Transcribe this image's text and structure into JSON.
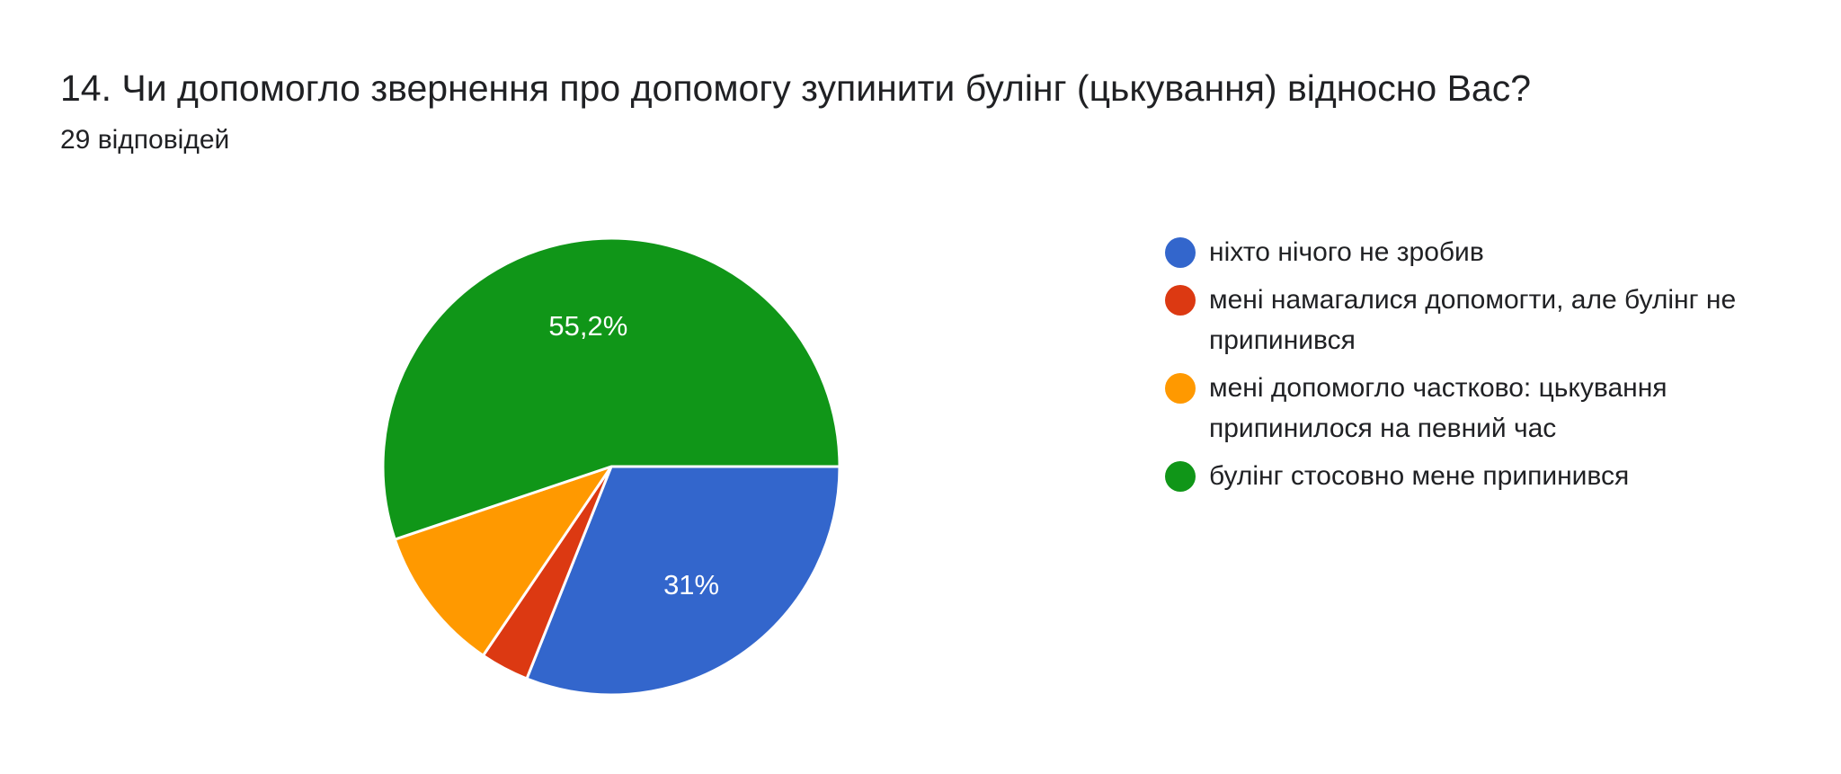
{
  "header": {
    "title": "14. Чи допомогло звернення про допомогу зупинити булінг (цькування) відносно Вас?",
    "responses": "29 відповідей"
  },
  "chart_data": {
    "type": "pie",
    "total_responses": 29,
    "legend_position": "right",
    "slices": [
      {
        "label": "ніхто нічого не зробив",
        "count": 9,
        "percent": 31.0,
        "display_label": "31%",
        "color": "#3366cc"
      },
      {
        "label": "мені намагалися допомогти, але булінг не припинився",
        "count": 1,
        "percent": 3.4,
        "display_label": "",
        "color": "#dc3912"
      },
      {
        "label": "мені допомогло частково: цькування припинилося на певний час",
        "count": 3,
        "percent": 10.3,
        "display_label": "",
        "color": "#ff9900"
      },
      {
        "label": "булінг стосовно мене припинився",
        "count": 16,
        "percent": 55.2,
        "display_label": "55,2%",
        "color": "#109618"
      }
    ]
  }
}
